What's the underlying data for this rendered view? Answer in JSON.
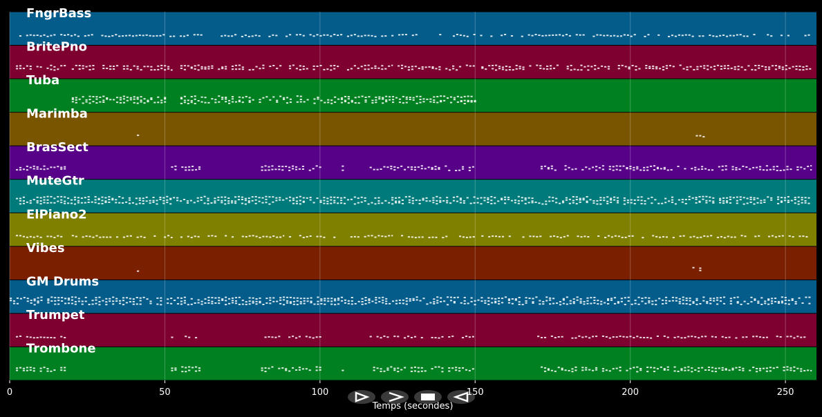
{
  "chart_data": {
    "type": "piano-roll",
    "x_label": "Temps (secondes)",
    "xlim": [
      0,
      260
    ],
    "xticks": [
      0,
      50,
      100,
      150,
      200,
      250
    ],
    "grid": true,
    "tracks": [
      {
        "name": "FngrBass",
        "color": "#035c8a",
        "note_spans": [
          [
            2,
            258
          ]
        ]
      },
      {
        "name": "BritePno",
        "color": "#7d0030",
        "note_spans": [
          [
            2,
            18
          ],
          [
            20,
            52
          ],
          [
            55,
            88
          ],
          [
            90,
            123
          ],
          [
            125,
            150
          ],
          [
            152,
            258
          ]
        ]
      },
      {
        "name": "Tuba",
        "color": "#008020",
        "note_spans": [
          [
            20,
            50
          ],
          [
            55,
            150
          ]
        ]
      },
      {
        "name": "Marimba",
        "color": "#7a5500",
        "note_spans": [
          [
            41,
            41.5
          ],
          [
            220,
            224
          ]
        ]
      },
      {
        "name": "BrasSect",
        "color": "#570088",
        "note_spans": [
          [
            2,
            18
          ],
          [
            52,
            61
          ],
          [
            81,
            100
          ],
          [
            107,
            108
          ],
          [
            116,
            150
          ],
          [
            170,
            258
          ]
        ]
      },
      {
        "name": "MuteGtr",
        "color": "#007a7a",
        "note_spans": [
          [
            2,
            258
          ]
        ]
      },
      {
        "name": "ElPiano2",
        "color": "#7f7f00",
        "note_spans": [
          [
            2,
            18
          ],
          [
            20,
            52
          ],
          [
            55,
            88
          ],
          [
            90,
            123
          ],
          [
            125,
            150
          ],
          [
            152,
            258
          ]
        ]
      },
      {
        "name": "Vibes",
        "color": "#7a1f00",
        "note_spans": [
          [
            41,
            41.5
          ],
          [
            220,
            224
          ]
        ]
      },
      {
        "name": "GM Drums",
        "color": "#035c8a",
        "note_spans": [
          [
            0,
            258
          ]
        ]
      },
      {
        "name": "Trumpet",
        "color": "#7d0030",
        "note_spans": [
          [
            2,
            18
          ],
          [
            52,
            61
          ],
          [
            81,
            100
          ],
          [
            107,
            108
          ],
          [
            116,
            150
          ],
          [
            170,
            258
          ]
        ]
      },
      {
        "name": "Trombone",
        "color": "#008020",
        "note_spans": [
          [
            2,
            18
          ],
          [
            52,
            61
          ],
          [
            81,
            100
          ],
          [
            107,
            108
          ],
          [
            116,
            150
          ],
          [
            170,
            258
          ]
        ]
      }
    ]
  }
}
